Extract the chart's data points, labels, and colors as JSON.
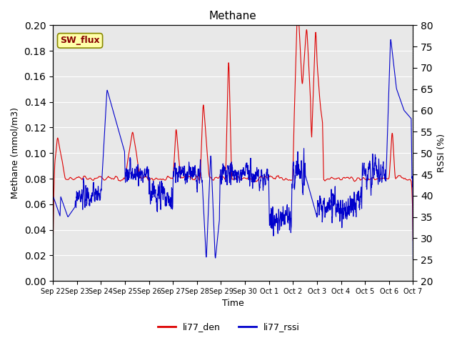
{
  "title": "Methane",
  "xlabel": "Time",
  "ylabel_left": "Methane (mmol/m3)",
  "ylabel_right": "RSSI (%)",
  "ylim_left": [
    0.0,
    0.2
  ],
  "ylim_right": [
    20,
    80
  ],
  "yticks_left": [
    0.0,
    0.02,
    0.04,
    0.06,
    0.08,
    0.1,
    0.12,
    0.14,
    0.16,
    0.18,
    0.2
  ],
  "yticks_right": [
    20,
    25,
    30,
    35,
    40,
    45,
    50,
    55,
    60,
    65,
    70,
    75,
    80
  ],
  "xtick_labels": [
    "Sep 22",
    "Sep 23",
    "Sep 24",
    "Sep 25",
    "Sep 26",
    "Sep 27",
    "Sep 28",
    "Sep 29",
    "Sep 30",
    "Oct 1",
    "Oct 2",
    "Oct 3",
    "Oct 4",
    "Oct 5",
    "Oct 6",
    "Oct 7"
  ],
  "color_red": "#dd0000",
  "color_blue": "#0000cc",
  "background_color": "#e8e8e8",
  "legend_label_red": "li77_den",
  "legend_label_blue": "li77_rssi",
  "sw_flux_box_color": "#ffffaa",
  "sw_flux_text_color": "#880000",
  "sw_flux_border_color": "#888800"
}
